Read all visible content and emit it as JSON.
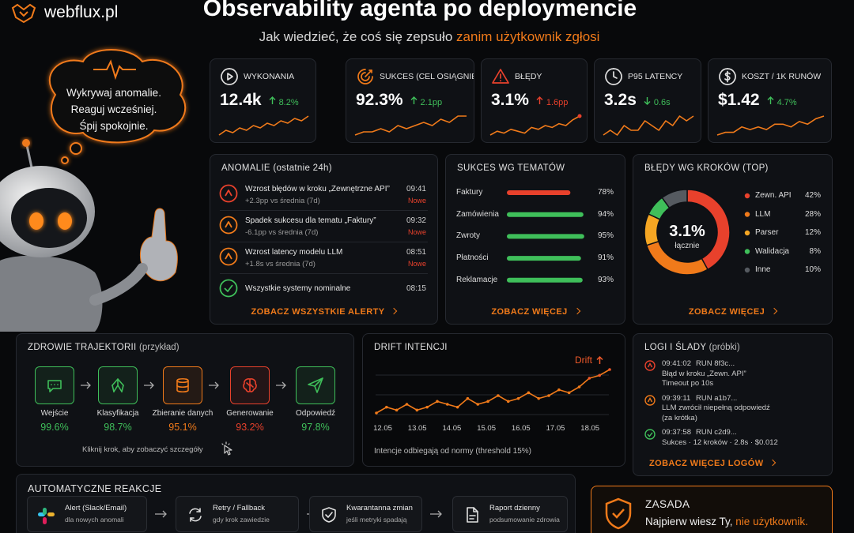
{
  "header": {
    "brand": "webflux.pl",
    "title": "Observability agenta po deploymencie",
    "subtitle": "Jak wiedzieć, że coś się zepsuło",
    "subtitle_highlight": "zanim użytkownik zgłosi"
  },
  "bubble": {
    "lines": [
      "Wykrywaj anomalie.",
      "Reaguj wcześniej.",
      "Śpij spokojnie."
    ]
  },
  "kpis": [
    {
      "label": "WYKONANIA",
      "value": "12.4k",
      "delta": "8.2%",
      "direction": "up",
      "color": "#3fbf5a",
      "trend": [
        10,
        12,
        11,
        13,
        12,
        14,
        13,
        15,
        14,
        16,
        15,
        17,
        16,
        18
      ]
    },
    {
      "label": "SUKCES (CEL OSIĄGNIĘTY)",
      "value": "92.3%",
      "delta": "2.1pp",
      "direction": "up",
      "color": "#3fbf5a",
      "trend": [
        11,
        12,
        12,
        13,
        12,
        14,
        13,
        14,
        15,
        14,
        16,
        15,
        17,
        17
      ]
    },
    {
      "label": "BŁĘDY",
      "value": "3.1%",
      "delta": "1.6pp",
      "direction": "up",
      "color": "#e8412c",
      "trend": [
        8,
        10,
        9,
        11,
        10,
        9,
        12,
        11,
        13,
        12,
        14,
        13,
        16,
        18
      ]
    },
    {
      "label": "P95 LATENCY",
      "value": "3.2s",
      "delta": "0.6s",
      "direction": "down",
      "color": "#3fbf5a",
      "trend": [
        12,
        13,
        12,
        14,
        13,
        13,
        15,
        14,
        13,
        15,
        14,
        16,
        15,
        16
      ]
    },
    {
      "label": "KOSZT / 1K RUNÓW",
      "value": "$1.42",
      "delta": "4.7%",
      "direction": "up",
      "color": "#3fbf5a",
      "trend": [
        10,
        11,
        11,
        13,
        12,
        13,
        12,
        14,
        14,
        13,
        15,
        14,
        16,
        17
      ]
    }
  ],
  "anomalies": {
    "title": "ANOMALIE (ostatnie 24h)",
    "link": "ZOBACZ WSZYSTKIE ALERTY",
    "items": [
      {
        "title": "Wzrost błędów w kroku „Zewnętrzne API”",
        "detail": "+2.3pp vs średnia (7d)",
        "time": "09:41",
        "status": "Nowe",
        "icon": "alert",
        "color": "#e8412c"
      },
      {
        "title": "Spadek sukcesu dla tematu „Faktury”",
        "detail": "-6.1pp vs średnia (7d)",
        "time": "09:32",
        "status": "Nowe",
        "icon": "alert",
        "color": "#f07a1a"
      },
      {
        "title": "Wzrost latency modelu LLM",
        "detail": "+1.8s vs średnia (7d)",
        "time": "08:51",
        "status": "Nowe",
        "icon": "alert",
        "color": "#f07a1a"
      },
      {
        "title": "Wszystkie systemy nominalne",
        "time": "08:15",
        "icon": "check",
        "color": "#3fbf5a"
      }
    ]
  },
  "topics": {
    "title": "SUKCES WG TEMATÓW",
    "link": "ZOBACZ WIĘCEJ",
    "categories": [
      "Faktury",
      "Zamówienia",
      "Zwroty",
      "Płatności",
      "Reklamacje"
    ],
    "values": [
      78,
      94,
      95,
      91,
      93
    ],
    "value_labels": [
      "78%",
      "94%",
      "95%",
      "91%",
      "93%"
    ],
    "colors": [
      "#e8412c",
      "#3fbf5a",
      "#3fbf5a",
      "#3fbf5a",
      "#3fbf5a"
    ]
  },
  "errors": {
    "title": "BŁĘDY WG KROKÓW (TOP)",
    "link": "ZOBACZ WIĘCEJ",
    "total": "3.1%",
    "total_caption": "łącznie",
    "categories": [
      "Zewn. API",
      "LLM",
      "Parser",
      "Walidacja",
      "Inne"
    ],
    "values": [
      42,
      28,
      12,
      8,
      10
    ],
    "value_labels": [
      "42%",
      "28%",
      "12%",
      "8%",
      "10%"
    ],
    "colors": [
      "#e8412c",
      "#f07a1a",
      "#f5a623",
      "#3fbf5a",
      "#555a60"
    ]
  },
  "trajectory": {
    "title": "ZDROWIE TRAJEKTORII",
    "title_note": "(przykład)",
    "hint": "Kliknij krok, aby zobaczyć szczegóły",
    "steps": [
      {
        "label": "Wejście",
        "value": "99.6%",
        "color": "#3fbf5a"
      },
      {
        "label": "Klasyfikacja",
        "value": "98.7%",
        "color": "#3fbf5a"
      },
      {
        "label": "Zbieranie danych",
        "value": "95.1%",
        "color": "#f07a1a"
      },
      {
        "label": "Generowanie",
        "value": "93.2%",
        "color": "#e8412c"
      },
      {
        "label": "Odpowiedź",
        "value": "97.8%",
        "color": "#3fbf5a"
      }
    ]
  },
  "drift": {
    "title": "DRIFT INTENCJI",
    "badge": "Drift",
    "note": "Intencje odbiegają od normy (threshold 15%)",
    "color": "#f07a1a",
    "badge_color": "#f0592a",
    "tick_labels": [
      "12.05",
      "13.05",
      "14.05",
      "15.05",
      "16.05",
      "17.05",
      "18.05"
    ],
    "values": [
      10,
      12,
      11,
      13,
      11,
      12,
      14,
      13,
      12,
      15,
      13,
      14,
      16,
      14,
      15,
      17,
      15,
      16,
      18,
      17,
      19,
      22,
      23,
      25
    ]
  },
  "logs": {
    "title": "LOGI I ŚLADY",
    "title_note": "(próbki)",
    "link": "ZOBACZ WIĘCEJ LOGÓW",
    "items": [
      {
        "time": "09:41:02",
        "run": "RUN 8f3c...",
        "lines": [
          "Błąd w kroku „Zewn. API”",
          "Timeout po 10s"
        ],
        "icon": "alert",
        "color": "#e8412c"
      },
      {
        "time": "09:39:11",
        "run": "RUN a1b7...",
        "lines": [
          "LLM zwrócił niepełną odpowiedź",
          "(za krótka)"
        ],
        "icon": "alert",
        "color": "#f07a1a"
      },
      {
        "time": "09:37:58",
        "run": "RUN c2d9...",
        "lines": [
          "Sukces · 12 kroków · 2.8s · $0.012"
        ],
        "icon": "check",
        "color": "#3fbf5a"
      }
    ]
  },
  "reactions": {
    "title": "AUTOMATYCZNE REAKCJE",
    "items": [
      {
        "title": "Alert (Slack/Email)",
        "detail": "dla nowych anomali"
      },
      {
        "title": "Retry / Fallback",
        "detail": "gdy krok zawiedzie"
      },
      {
        "title": "Kwarantanna zmian",
        "detail": "jeśli metryki spadają"
      },
      {
        "title": "Raport dzienny",
        "detail": "podsumowanie zdrowia"
      }
    ]
  },
  "principle": {
    "title": "ZASADA",
    "text": "Najpierw wiesz Ty,",
    "highlight": "nie użytkownik."
  }
}
